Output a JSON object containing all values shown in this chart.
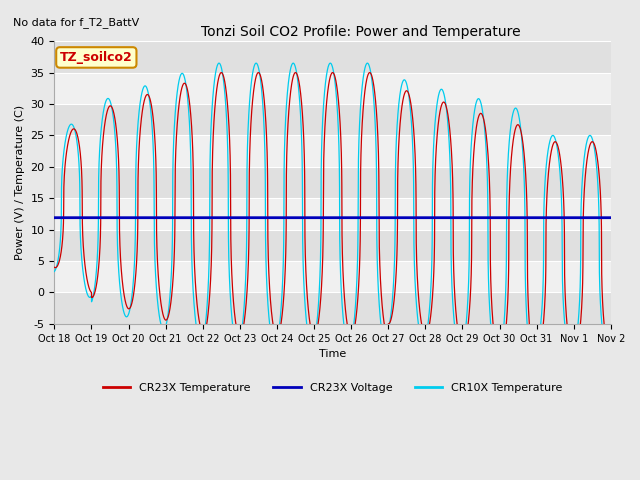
{
  "title": "Tonzi Soil CO2 Profile: Power and Temperature",
  "no_data_text": "No data for f_T2_BattV",
  "legend_box_text": "TZ_soilco2",
  "ylabel": "Power (V) / Temperature (C)",
  "xlabel": "Time",
  "ylim": [
    -5,
    40
  ],
  "voltage_value": 11.9,
  "xtick_labels": [
    "Oct 18",
    "Oct 19",
    "Oct 20",
    "Oct 21",
    "Oct 22",
    "Oct 23",
    "Oct 24",
    "Oct 25",
    "Oct 26",
    "Oct 27",
    "Oct 28",
    "Oct 29",
    "Oct 30",
    "Oct 31",
    "Nov 1",
    "Nov 2"
  ],
  "background_color": "#e8e8e8",
  "plot_bg_color": "#e0e0e0",
  "band_color": "#f0f0f0",
  "red_color": "#cc0000",
  "blue_color": "#0000bb",
  "cyan_color": "#00ccee",
  "legend_entries": [
    "CR23X Temperature",
    "CR23X Voltage",
    "CR10X Temperature"
  ],
  "days": 15
}
